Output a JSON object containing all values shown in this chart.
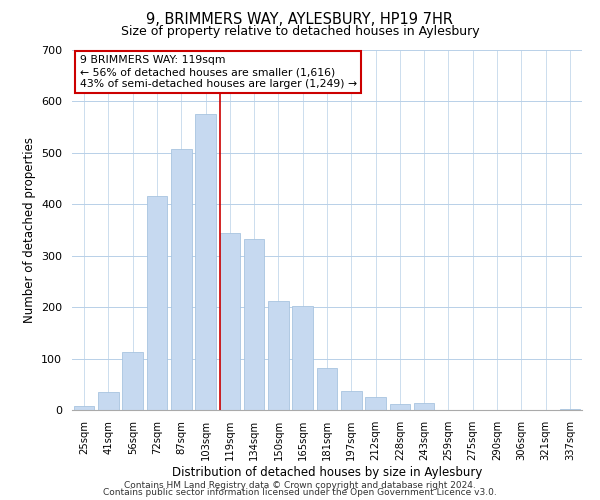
{
  "title": "9, BRIMMERS WAY, AYLESBURY, HP19 7HR",
  "subtitle": "Size of property relative to detached houses in Aylesbury",
  "xlabel": "Distribution of detached houses by size in Aylesbury",
  "ylabel": "Number of detached properties",
  "categories": [
    "25sqm",
    "41sqm",
    "56sqm",
    "72sqm",
    "87sqm",
    "103sqm",
    "119sqm",
    "134sqm",
    "150sqm",
    "165sqm",
    "181sqm",
    "197sqm",
    "212sqm",
    "228sqm",
    "243sqm",
    "259sqm",
    "275sqm",
    "290sqm",
    "306sqm",
    "321sqm",
    "337sqm"
  ],
  "values": [
    8,
    35,
    112,
    416,
    508,
    575,
    345,
    333,
    212,
    203,
    82,
    37,
    26,
    12,
    13,
    0,
    0,
    0,
    0,
    0,
    2
  ],
  "bar_color": "#c6d9f0",
  "bar_edgecolor": "#a8c4e0",
  "vline_index": 6,
  "vline_color": "#cc0000",
  "annotation_text": "9 BRIMMERS WAY: 119sqm\n← 56% of detached houses are smaller (1,616)\n43% of semi-detached houses are larger (1,249) →",
  "annotation_box_edgecolor": "#cc0000",
  "ylim": [
    0,
    700
  ],
  "yticks": [
    0,
    100,
    200,
    300,
    400,
    500,
    600,
    700
  ],
  "grid_color": "#b8d0e8",
  "footer1": "Contains HM Land Registry data © Crown copyright and database right 2024.",
  "footer2": "Contains public sector information licensed under the Open Government Licence v3.0."
}
